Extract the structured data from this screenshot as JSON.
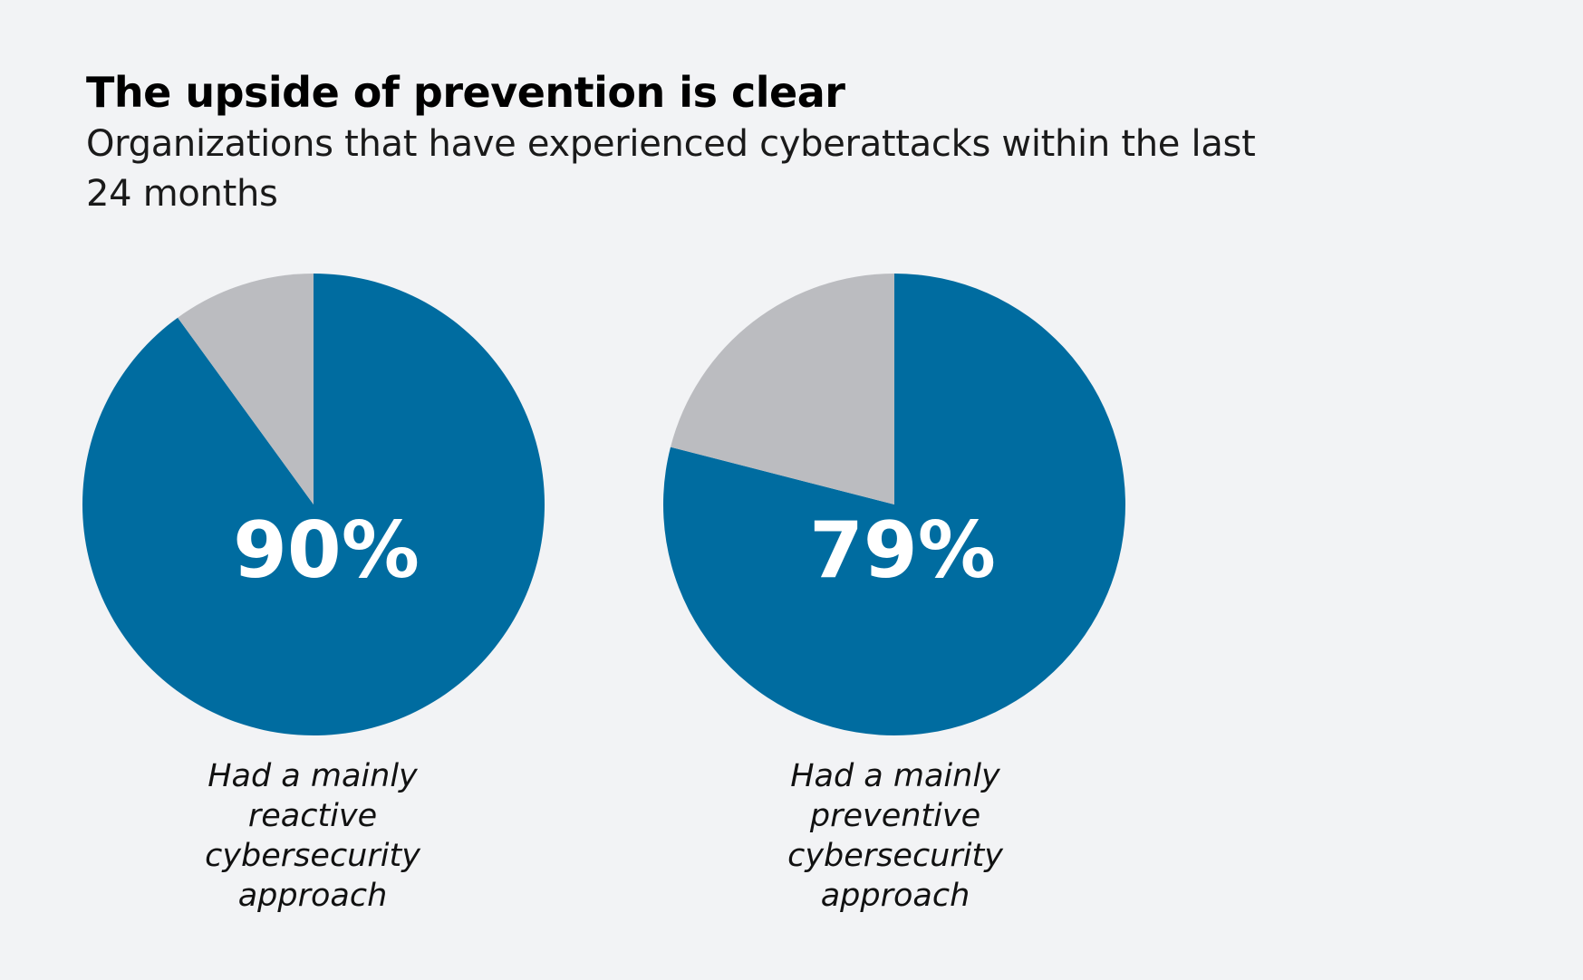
{
  "title": "The upside of prevention is clear",
  "subtitle": "Organizations that have experienced cyberattacks within the last 24 months",
  "colors": {
    "attacked": "#006ca0",
    "not_attacked": "#bbbcc0",
    "background": "#f2f3f5"
  },
  "chart_data": [
    {
      "type": "pie",
      "slices": [
        {
          "value": 90,
          "color": "#006ca0"
        },
        {
          "value": 10,
          "color": "#bbbcc0"
        }
      ],
      "label": "90%",
      "caption": "Had a mainly reactive cybersecurity approach"
    },
    {
      "type": "pie",
      "slices": [
        {
          "value": 79,
          "color": "#006ca0"
        },
        {
          "value": 21,
          "color": "#bbbcc0"
        }
      ],
      "label": "79%",
      "caption": "Had a mainly preventive cybersecurity approach"
    }
  ]
}
